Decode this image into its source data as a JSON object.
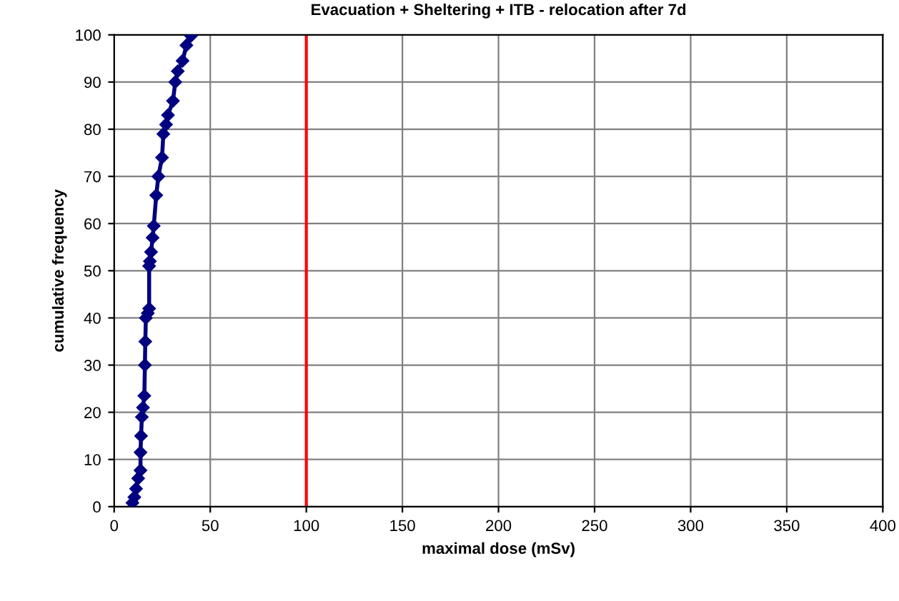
{
  "chart_data": {
    "type": "line",
    "title": "Evacuation + Sheltering + ITB - relocation after 7d",
    "xlabel": "maximal dose (mSv)",
    "ylabel": "cumulative frequency",
    "series": [
      {
        "color": "#000080",
        "x": [
          9.5,
          10.5,
          11.4,
          12.5,
          13.7,
          13.7,
          14.0,
          14.4,
          15.0,
          15.7,
          16.0,
          16.2,
          16.5,
          17.5,
          18.2,
          18.2,
          18.6,
          19.2,
          20.0,
          20.6,
          21.9,
          23.0,
          24.9,
          25.6,
          27.0,
          28.0,
          30.6,
          31.8,
          33.1,
          35.6,
          37.6,
          40.0
        ],
        "values": [
          0.8,
          2,
          3.8,
          6,
          7.7,
          11.5,
          15,
          19,
          21,
          23.5,
          30,
          35,
          40,
          41,
          42,
          51,
          52,
          54,
          57,
          59.5,
          66,
          70,
          74,
          79,
          81,
          83,
          86,
          90,
          92.3,
          94.5,
          97.8,
          99.8
        ]
      }
    ],
    "xlim": [
      0,
      400
    ],
    "ylim": [
      0,
      100
    ],
    "xticks": [
      0,
      50,
      100,
      150,
      200,
      250,
      300,
      350,
      400
    ],
    "yticks": [
      0,
      10,
      20,
      30,
      40,
      50,
      60,
      70,
      80,
      90,
      100
    ],
    "grid": true,
    "marker": "diamond",
    "line_style": "solid",
    "ref_lines": [
      {
        "axis": "x",
        "value": 100,
        "color": "#ff0000"
      }
    ]
  }
}
